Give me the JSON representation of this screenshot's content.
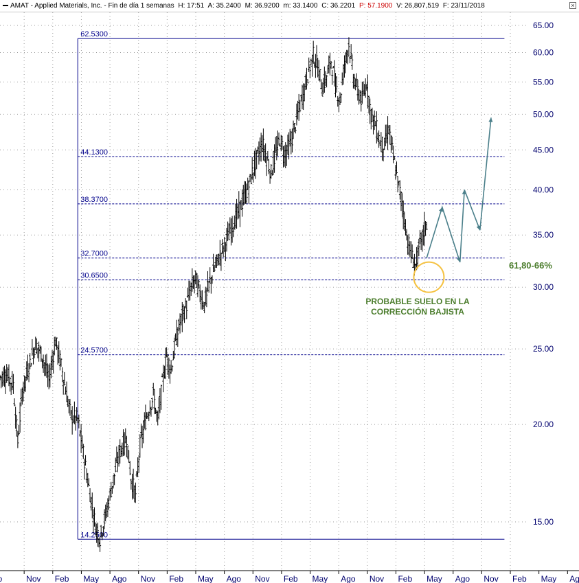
{
  "header": {
    "title": "AMAT - Applied Materials, Inc. - Fin de día 1 semanas",
    "high": "H: 17:51",
    "ask": "A: 35.2400",
    "mx": "M: 36.9200",
    "mn": "m: 33.1400",
    "close": "C: 36.2201",
    "p": "P: 57.1900",
    "volume": "V: 26,807,519",
    "date": "F: 23/11/2018",
    "close_icon": "close-icon"
  },
  "colors": {
    "price": "#000000",
    "fib": "#00008b",
    "grid": "#9a9a9a",
    "axis_text": "#00006e",
    "projection": "#4a7f8a",
    "circle": "#f5c242",
    "annotation": "#4a7c2b",
    "p_value": "#cc0000"
  },
  "chart_data": {
    "type": "candlestick",
    "title": "AMAT - Applied Materials, Inc. - Fin de día 1 semanas",
    "y_scale": "log",
    "ylim": [
      13.5,
      66
    ],
    "y_ticks": [
      15,
      20,
      25,
      30,
      35,
      40,
      45,
      50,
      55,
      60,
      65
    ],
    "y_tick_labels": [
      "15.00",
      "20.00",
      "25.00",
      "30.00",
      "35.00",
      "40.00",
      "45.00",
      "50.00",
      "55.00",
      "60.00",
      "65.00"
    ],
    "x_ticks": [
      "o",
      "Nov",
      "Feb",
      "May",
      "Ago",
      "Nov",
      "Feb",
      "May",
      "Ago",
      "Nov",
      "Feb",
      "May",
      "Ago",
      "Nov",
      "Feb",
      "May",
      "Ago",
      "Nov",
      "Feb",
      "May",
      "Ago"
    ],
    "x_range_weeks": [
      0,
      238
    ],
    "grid": true,
    "price_path": [
      [
        0,
        23.0
      ],
      [
        3,
        23.2
      ],
      [
        6,
        22.5
      ],
      [
        8,
        19.0
      ],
      [
        10,
        22.0
      ],
      [
        13,
        23.8
      ],
      [
        16,
        25.4
      ],
      [
        19,
        24.5
      ],
      [
        22,
        22.8
      ],
      [
        25,
        25.6
      ],
      [
        27,
        24.2
      ],
      [
        30,
        21.8
      ],
      [
        32,
        20.5
      ],
      [
        35,
        20.3
      ],
      [
        38,
        18.0
      ],
      [
        41,
        16.0
      ],
      [
        43,
        14.8
      ],
      [
        45,
        14.3
      ],
      [
        48,
        15.5
      ],
      [
        51,
        17.0
      ],
      [
        54,
        18.5
      ],
      [
        57,
        19.2
      ],
      [
        59,
        17.0
      ],
      [
        61,
        16.3
      ],
      [
        63,
        18.8
      ],
      [
        66,
        20.5
      ],
      [
        69,
        21.8
      ],
      [
        71,
        20.2
      ],
      [
        73,
        22.5
      ],
      [
        75,
        24.5
      ],
      [
        77,
        23.5
      ],
      [
        79,
        25.5
      ],
      [
        81,
        27.0
      ],
      [
        84,
        28.5
      ],
      [
        86,
        30.0
      ],
      [
        88,
        30.8
      ],
      [
        90,
        29.5
      ],
      [
        92,
        28.5
      ],
      [
        94,
        30.2
      ],
      [
        97,
        32.0
      ],
      [
        100,
        33.5
      ],
      [
        103,
        35.0
      ],
      [
        106,
        36.8
      ],
      [
        109,
        38.5
      ],
      [
        112,
        40.5
      ],
      [
        115,
        43.5
      ],
      [
        118,
        46.0
      ],
      [
        120,
        44.0
      ],
      [
        122,
        42.0
      ],
      [
        124,
        44.5
      ],
      [
        126,
        46.5
      ],
      [
        128,
        44.5
      ],
      [
        131,
        46.0
      ],
      [
        134,
        50.0
      ],
      [
        137,
        54.0
      ],
      [
        139,
        57.0
      ],
      [
        141,
        59.5
      ],
      [
        143,
        57.5
      ],
      [
        145,
        54.0
      ],
      [
        147,
        56.0
      ],
      [
        149,
        58.5
      ],
      [
        151,
        54.5
      ],
      [
        153,
        52.0
      ],
      [
        155,
        58.0
      ],
      [
        157,
        61.5
      ],
      [
        159,
        56.0
      ],
      [
        161,
        53.5
      ],
      [
        163,
        52.0
      ],
      [
        165,
        55.0
      ],
      [
        167,
        50.0
      ],
      [
        169,
        48.5
      ],
      [
        171,
        46.0
      ],
      [
        173,
        45.5
      ],
      [
        175,
        48.0
      ],
      [
        177,
        44.0
      ],
      [
        179,
        41.0
      ],
      [
        181,
        38.5
      ],
      [
        183,
        35.0
      ],
      [
        185,
        33.0
      ],
      [
        187,
        32.0
      ],
      [
        189,
        34.0
      ],
      [
        191,
        35.5
      ],
      [
        192,
        36.2
      ]
    ],
    "fib_box": {
      "x_start_week": 35,
      "x_end_week": 227,
      "low": 14.25,
      "high": 62.53
    },
    "fib_levels": [
      {
        "value": 62.53,
        "label": "62.5300"
      },
      {
        "value": 44.13,
        "label": "44.1300"
      },
      {
        "value": 38.37,
        "label": "38.3700"
      },
      {
        "value": 32.7,
        "label": "32.7000"
      },
      {
        "value": 30.65,
        "label": "30.6500"
      },
      {
        "value": 24.57,
        "label": "24.5700"
      },
      {
        "value": 14.25,
        "label": "14.2500"
      }
    ],
    "projection": [
      [
        192,
        32.7
      ],
      [
        199,
        38.0
      ],
      [
        207,
        32.3
      ],
      [
        209,
        40.0
      ],
      [
        216,
        35.5
      ],
      [
        221,
        49.5
      ]
    ],
    "highlight_circle": {
      "week": 193,
      "value": 30.9
    },
    "annotations": [
      {
        "text_lines": [
          "PROBABLE SUELO EN LA",
          "CORRECCIÓN BAJISTA"
        ]
      },
      {
        "text_lines": [
          "61,80-66%"
        ]
      }
    ]
  }
}
